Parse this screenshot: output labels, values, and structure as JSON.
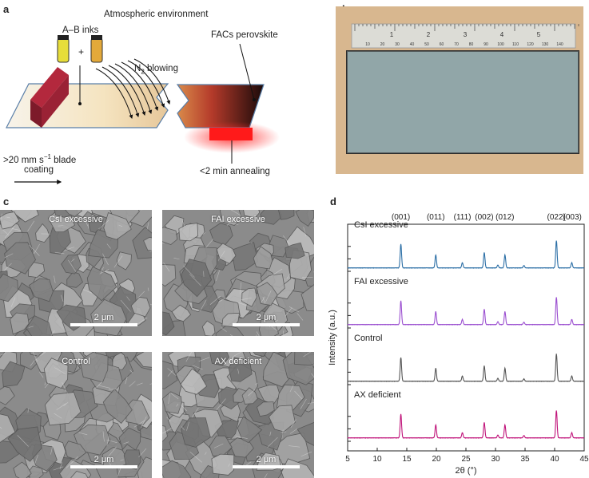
{
  "panel_a": {
    "label": "a",
    "title": "Atmospheric environment",
    "inks": "A–B inks",
    "plus": "+",
    "n2": "N",
    "n2_sub": "2",
    "n2_rest": " blowing",
    "product": "FACs perovskite",
    "speed_a": ">20 mm s",
    "speed_sup": "−1",
    "speed_b": " blade",
    "speed_c": "coating",
    "anneal": "<2 min annealing"
  },
  "panel_b": {
    "label": "b",
    "ruler_marks": [
      "1",
      "2",
      "3",
      "4",
      "5"
    ],
    "ruler_small": [
      "10",
      "20",
      "30",
      "40",
      "50",
      "60",
      "70",
      "80",
      "90",
      "100",
      "110",
      "120",
      "130",
      "140"
    ]
  },
  "panel_c": {
    "label": "c",
    "images": [
      {
        "label": "CsI excessive",
        "scale": "2 μm"
      },
      {
        "label": "FAI excessive",
        "scale": "2 μm"
      },
      {
        "label": "Control",
        "scale": "2 μm"
      },
      {
        "label": "AX deficient",
        "scale": "2 μm"
      }
    ]
  },
  "panel_d": {
    "label": "d",
    "chart_data": {
      "type": "line",
      "xlabel": "2θ (°)",
      "ylabel": "Intensity (a.u.)",
      "xlim": [
        5,
        45
      ],
      "x_ticks": [
        5,
        10,
        15,
        20,
        25,
        30,
        35,
        40,
        45
      ],
      "peak_labels": [
        {
          "text": "(001)",
          "x": 14.0
        },
        {
          "text": "(011)",
          "x": 19.9
        },
        {
          "text": "(111)",
          "x": 24.4
        },
        {
          "text": "(002)",
          "x": 28.1
        },
        {
          "text": "(012)",
          "x": 31.6
        },
        {
          "text": "(022)",
          "x": 40.3
        },
        {
          "text": "(003)",
          "x": 43.0
        }
      ],
      "peaks": [
        {
          "x": 14.0,
          "height": 1.0
        },
        {
          "x": 19.9,
          "height": 0.55
        },
        {
          "x": 24.4,
          "height": 0.22
        },
        {
          "x": 28.1,
          "height": 0.65
        },
        {
          "x": 30.4,
          "height": 0.12
        },
        {
          "x": 31.6,
          "height": 0.55
        },
        {
          "x": 34.8,
          "height": 0.1
        },
        {
          "x": 40.3,
          "height": 1.15
        },
        {
          "x": 42.9,
          "height": 0.22
        }
      ],
      "series": [
        {
          "name": "CsI excessive",
          "color": "#2c6fa6"
        },
        {
          "name": "FAI excessive",
          "color": "#9b4fd0"
        },
        {
          "name": "Control",
          "color": "#555555"
        },
        {
          "name": "AX deficient",
          "color": "#c0147a"
        }
      ]
    }
  }
}
